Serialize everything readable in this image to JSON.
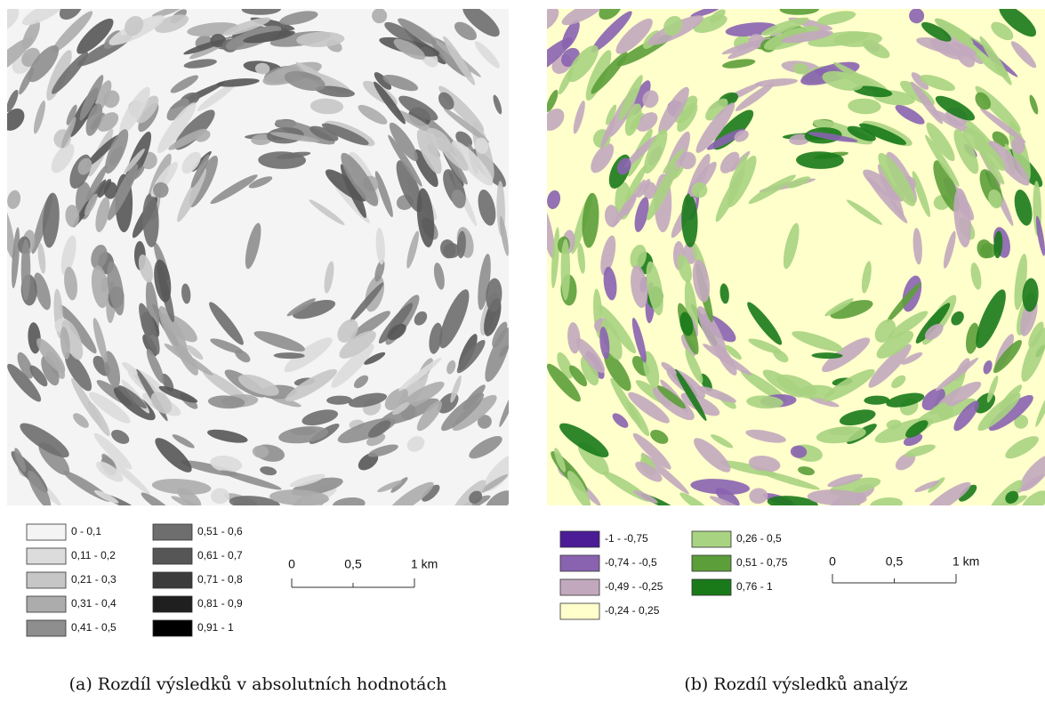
{
  "panels": [
    {
      "legend": [
        {
          "label": "0 - 0,1",
          "color": "#f4f4f4"
        },
        {
          "label": "0,11 - 0,2",
          "color": "#dcdcdc"
        },
        {
          "label": "0,21 - 0,3",
          "color": "#c6c6c6"
        },
        {
          "label": "0,31 - 0,4",
          "color": "#acacac"
        },
        {
          "label": "0,41 - 0,5",
          "color": "#8e8e8e"
        },
        {
          "label": "0,51 - 0,6",
          "color": "#6e6e6e"
        },
        {
          "label": "0,61 - 0,7",
          "color": "#565656"
        },
        {
          "label": "0,71 - 0,8",
          "color": "#3c3c3c"
        },
        {
          "label": "0,81 - 0,9",
          "color": "#1f1f1f"
        },
        {
          "label": "0,91 - 1",
          "color": "#000000"
        }
      ],
      "scale_labels": [
        "0",
        "0,5",
        "1 km"
      ],
      "caption": "(a) Rozdíl výsledků v absolutních hodnotách"
    },
    {
      "legend": [
        {
          "label": "-1 - -0,75",
          "color": "#4b1c96"
        },
        {
          "label": "-0,74 - -0,5",
          "color": "#8a63b0"
        },
        {
          "label": "-0,49 - -0,25",
          "color": "#c2a8bd"
        },
        {
          "label": "-0,24 - 0,25",
          "color": "#ffffcc"
        },
        {
          "label": "0,26 - 0,5",
          "color": "#a8d381"
        },
        {
          "label": "0,51 - 0,75",
          "color": "#5c9e3a"
        },
        {
          "label": "0,76 - 1",
          "color": "#1a7a1a"
        }
      ],
      "scale_labels": [
        "0",
        "0,5",
        "1 km"
      ],
      "caption": "(b) Rozdíl výsledků analýz"
    }
  ]
}
